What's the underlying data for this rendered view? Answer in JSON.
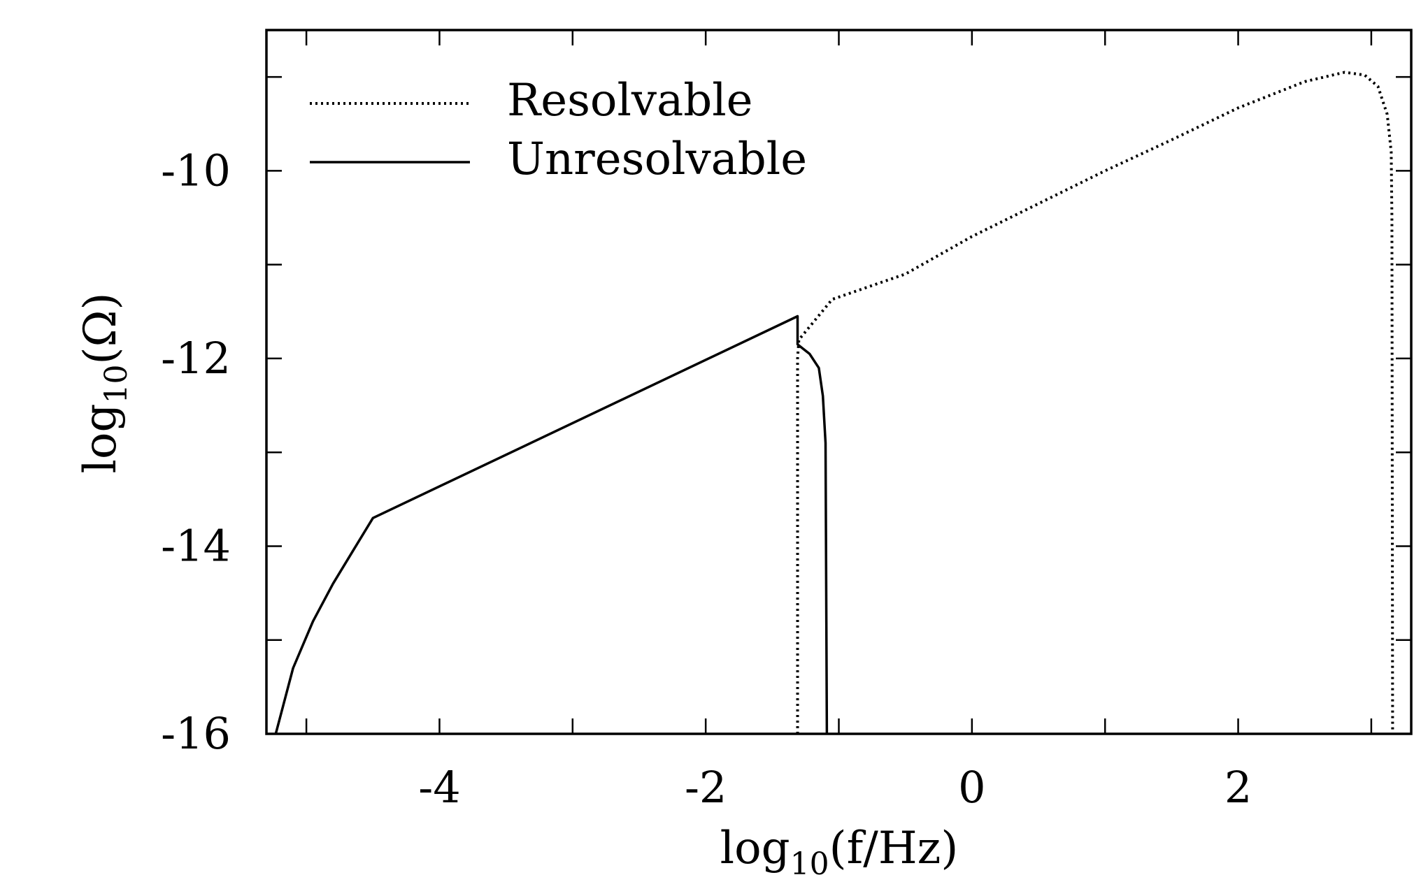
{
  "chart_data": {
    "type": "line",
    "xlabel": {
      "prefix": "log",
      "sub": "10",
      "arg": "(f/Hz)"
    },
    "ylabel": {
      "prefix": "log",
      "sub": "10",
      "arg": "(Ω)"
    },
    "xlim": [
      -5.3,
      3.3
    ],
    "ylim": [
      -16,
      -8.5
    ],
    "xticks": [
      -5,
      -4,
      -3,
      -2,
      -1,
      0,
      1,
      2,
      3
    ],
    "xtick_labels": [
      {
        "value": -4,
        "label": "-4"
      },
      {
        "value": -2,
        "label": "-2"
      },
      {
        "value": 0,
        "label": "0"
      },
      {
        "value": 2,
        "label": "2"
      }
    ],
    "yticks": [
      -16,
      -15,
      -14,
      -13,
      -12,
      -11,
      -10,
      -9
    ],
    "ytick_labels": [
      {
        "value": -16,
        "label": "-16"
      },
      {
        "value": -14,
        "label": "-14"
      },
      {
        "value": -12,
        "label": "-12"
      },
      {
        "value": -10,
        "label": "-10"
      }
    ],
    "grid": false,
    "legend_position": "top-left",
    "series": [
      {
        "name": "Resolvable",
        "style": "dotted",
        "points": [
          [
            -1.31,
            -16.0
          ],
          [
            -1.31,
            -12.0
          ],
          [
            -1.3,
            -11.8
          ],
          [
            -1.05,
            -11.37
          ],
          [
            -0.5,
            -11.1
          ],
          [
            0.0,
            -10.7
          ],
          [
            0.5,
            -10.35
          ],
          [
            1.0,
            -10.0
          ],
          [
            1.5,
            -9.67
          ],
          [
            2.0,
            -9.33
          ],
          [
            2.5,
            -9.05
          ],
          [
            2.8,
            -8.95
          ],
          [
            2.95,
            -8.98
          ],
          [
            3.05,
            -9.1
          ],
          [
            3.12,
            -9.4
          ],
          [
            3.15,
            -9.8
          ],
          [
            3.155,
            -10.5
          ],
          [
            3.16,
            -16.0
          ]
        ]
      },
      {
        "name": "Unresolvable",
        "style": "solid",
        "points": [
          [
            -5.23,
            -16.0
          ],
          [
            -5.1,
            -15.3
          ],
          [
            -4.95,
            -14.8
          ],
          [
            -4.8,
            -14.4
          ],
          [
            -4.65,
            -14.05
          ],
          [
            -4.5,
            -13.7
          ],
          [
            -1.31,
            -11.55
          ],
          [
            -1.31,
            -11.85
          ],
          [
            -1.22,
            -11.95
          ],
          [
            -1.15,
            -12.1
          ],
          [
            -1.12,
            -12.4
          ],
          [
            -1.1,
            -12.9
          ],
          [
            -1.09,
            -16.0
          ]
        ]
      }
    ]
  }
}
